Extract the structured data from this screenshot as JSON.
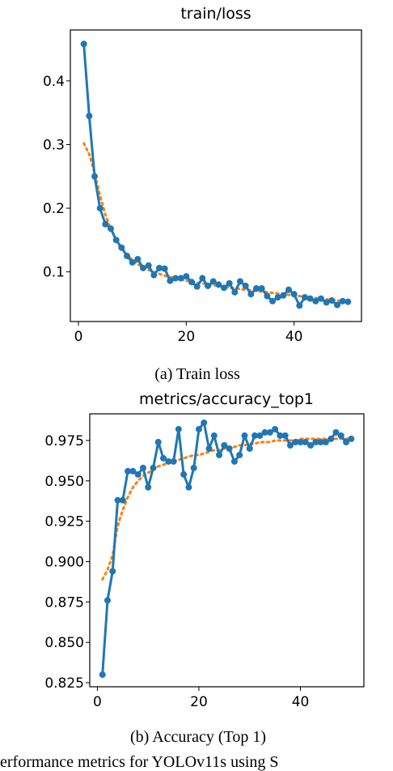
{
  "captions": {
    "a": "(a) Train loss",
    "b": "(b) Accuracy (Top 1)",
    "bottom_fragment": "erformance metrics for YOLOv11s using S"
  },
  "colors": {
    "series": "#1f77b4",
    "trend": "#ff7f0e",
    "axes": "#000000"
  },
  "chart_data": [
    {
      "type": "line",
      "title": "train/loss",
      "xlabel": "",
      "ylabel": "",
      "xlim": [
        -1.5,
        52.5
      ],
      "ylim": [
        0.022,
        0.48
      ],
      "xticks": [
        0,
        20,
        40
      ],
      "yticks": [
        0.1,
        0.2,
        0.3,
        0.4
      ],
      "ytick_labels": [
        "0.1",
        "0.2",
        "0.3",
        "0.4"
      ],
      "grid": false,
      "series": [
        {
          "style": "solid-markers",
          "x": [
            1,
            2,
            3,
            4,
            5,
            6,
            7,
            8,
            9,
            10,
            11,
            12,
            13,
            14,
            15,
            16,
            17,
            18,
            19,
            20,
            21,
            22,
            23,
            24,
            25,
            26,
            27,
            28,
            29,
            30,
            31,
            32,
            33,
            34,
            35,
            36,
            37,
            38,
            39,
            40,
            41,
            42,
            43,
            44,
            45,
            46,
            47,
            48,
            49,
            50
          ],
          "y": [
            0.458,
            0.345,
            0.25,
            0.2,
            0.175,
            0.168,
            0.15,
            0.138,
            0.125,
            0.115,
            0.12,
            0.106,
            0.11,
            0.095,
            0.106,
            0.105,
            0.086,
            0.09,
            0.09,
            0.093,
            0.084,
            0.077,
            0.09,
            0.078,
            0.085,
            0.08,
            0.075,
            0.082,
            0.068,
            0.085,
            0.078,
            0.065,
            0.074,
            0.074,
            0.062,
            0.054,
            0.06,
            0.063,
            0.072,
            0.065,
            0.047,
            0.06,
            0.058,
            0.054,
            0.058,
            0.052,
            0.055,
            0.048,
            0.054,
            0.053
          ]
        },
        {
          "style": "dotted-trend",
          "x": [
            1,
            2,
            3,
            4,
            5,
            6,
            7,
            8,
            9,
            10,
            11,
            12,
            13,
            14,
            15,
            16,
            17,
            18,
            19,
            20,
            21,
            22,
            23,
            24,
            25,
            26,
            27,
            28,
            29,
            30,
            31,
            32,
            33,
            34,
            35,
            36,
            37,
            38,
            39,
            40,
            41,
            42,
            43,
            44,
            45,
            46,
            47,
            48,
            49,
            50
          ],
          "y": [
            0.302,
            0.285,
            0.255,
            0.22,
            0.19,
            0.167,
            0.15,
            0.137,
            0.127,
            0.119,
            0.112,
            0.107,
            0.103,
            0.1,
            0.097,
            0.094,
            0.092,
            0.09,
            0.088,
            0.086,
            0.085,
            0.083,
            0.082,
            0.08,
            0.079,
            0.078,
            0.077,
            0.075,
            0.074,
            0.073,
            0.072,
            0.071,
            0.07,
            0.069,
            0.068,
            0.067,
            0.066,
            0.065,
            0.064,
            0.063,
            0.062,
            0.061,
            0.06,
            0.059,
            0.058,
            0.057,
            0.056,
            0.055,
            0.054,
            0.053
          ]
        }
      ]
    },
    {
      "type": "line",
      "title": "metrics/accuracy_top1",
      "xlabel": "",
      "ylabel": "",
      "xlim": [
        -1.5,
        52.5
      ],
      "ylim": [
        0.8225,
        0.9915
      ],
      "xticks": [
        0,
        20,
        40
      ],
      "yticks": [
        0.825,
        0.85,
        0.875,
        0.9,
        0.925,
        0.95,
        0.975
      ],
      "ytick_labels": [
        "0.825",
        "0.850",
        "0.875",
        "0.900",
        "0.925",
        "0.950",
        "0.975"
      ],
      "grid": false,
      "series": [
        {
          "style": "solid-markers",
          "x": [
            1,
            2,
            3,
            4,
            5,
            6,
            7,
            8,
            9,
            10,
            11,
            12,
            13,
            14,
            15,
            16,
            17,
            18,
            19,
            20,
            21,
            22,
            23,
            24,
            25,
            26,
            27,
            28,
            29,
            30,
            31,
            32,
            33,
            34,
            35,
            36,
            37,
            38,
            39,
            40,
            41,
            42,
            43,
            44,
            45,
            46,
            47,
            48,
            49,
            50
          ],
          "y": [
            0.83,
            0.876,
            0.894,
            0.938,
            0.938,
            0.956,
            0.956,
            0.954,
            0.958,
            0.946,
            0.958,
            0.974,
            0.964,
            0.962,
            0.962,
            0.982,
            0.954,
            0.946,
            0.958,
            0.982,
            0.986,
            0.97,
            0.978,
            0.966,
            0.972,
            0.97,
            0.962,
            0.966,
            0.978,
            0.97,
            0.978,
            0.978,
            0.98,
            0.98,
            0.982,
            0.978,
            0.978,
            0.972,
            0.974,
            0.974,
            0.974,
            0.972,
            0.974,
            0.974,
            0.974,
            0.976,
            0.98,
            0.978,
            0.974,
            0.976
          ]
        },
        {
          "style": "dotted-trend",
          "x": [
            1,
            2,
            3,
            4,
            5,
            6,
            7,
            8,
            9,
            10,
            11,
            12,
            13,
            14,
            15,
            16,
            17,
            18,
            19,
            20,
            21,
            22,
            23,
            24,
            25,
            26,
            27,
            28,
            29,
            30,
            31,
            32,
            33,
            34,
            35,
            36,
            37,
            38,
            39,
            40,
            41,
            42,
            43,
            44,
            45,
            46,
            47,
            48,
            49,
            50
          ],
          "y": [
            0.889,
            0.895,
            0.904,
            0.922,
            0.932,
            0.94,
            0.946,
            0.95,
            0.953,
            0.955,
            0.957,
            0.959,
            0.96,
            0.961,
            0.962,
            0.963,
            0.964,
            0.965,
            0.966,
            0.966,
            0.967,
            0.968,
            0.969,
            0.969,
            0.97,
            0.971,
            0.971,
            0.972,
            0.972,
            0.973,
            0.973,
            0.974,
            0.974,
            0.974,
            0.975,
            0.975,
            0.975,
            0.975,
            0.975,
            0.976,
            0.976,
            0.976,
            0.976,
            0.976,
            0.976,
            0.976,
            0.976,
            0.976,
            0.976,
            0.976
          ]
        }
      ]
    }
  ]
}
